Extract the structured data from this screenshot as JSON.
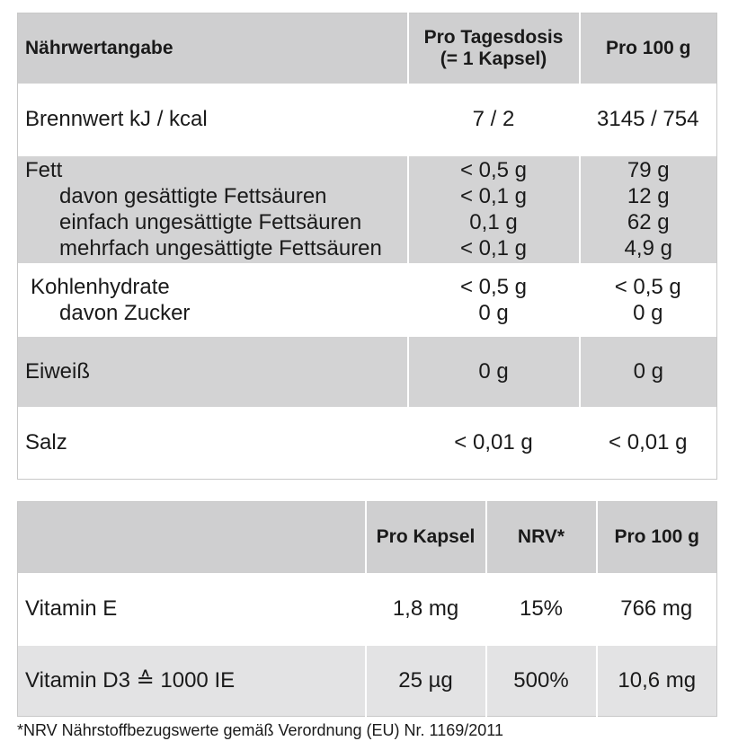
{
  "table1": {
    "headers": [
      "Nährwertangabe",
      "Pro Tagesdosis",
      "(= 1 Kapsel)",
      "Pro 100 g"
    ],
    "energy": {
      "label": "Brennwert kJ / kcal",
      "dose": "7 / 2",
      "per100": "3145 / 754"
    },
    "fat": {
      "label": "Fett",
      "dose": "< 0,5 g",
      "per100": "79 g",
      "subs": [
        {
          "label": "davon gesättigte Fettsäuren",
          "dose": "< 0,1 g",
          "per100": "12 g"
        },
        {
          "label": "einfach ungesättigte Fettsäuren",
          "dose": "0,1 g",
          "per100": "62 g"
        },
        {
          "label": "mehrfach ungesättigte Fettsäuren",
          "dose": "< 0,1 g",
          "per100": "4,9 g"
        }
      ]
    },
    "carbs": {
      "label": "Kohlenhydrate",
      "dose": "< 0,5 g",
      "per100": "< 0,5 g",
      "sub": {
        "label": "davon Zucker",
        "dose": "0 g",
        "per100": "0 g"
      }
    },
    "protein": {
      "label": "Eiweiß",
      "dose": "0 g",
      "per100": "0 g"
    },
    "salt": {
      "label": "Salz",
      "dose": "< 0,01 g",
      "per100": "< 0,01 g"
    }
  },
  "table2": {
    "headers": [
      "",
      "Pro Kapsel",
      "NRV*",
      "Pro 100 g"
    ],
    "rows": [
      {
        "label": "Vitamin E",
        "capsule": "1,8 mg",
        "nrv": "15%",
        "per100": "766 mg"
      },
      {
        "label": "Vitamin D3 ≙ 1000 IE",
        "capsule": "25 µg",
        "nrv": "500%",
        "per100": "10,6 mg"
      }
    ]
  },
  "footnote": "*NRV Nährstoffbezugswerte gemäß Verordnung (EU) Nr. 1169/2011"
}
